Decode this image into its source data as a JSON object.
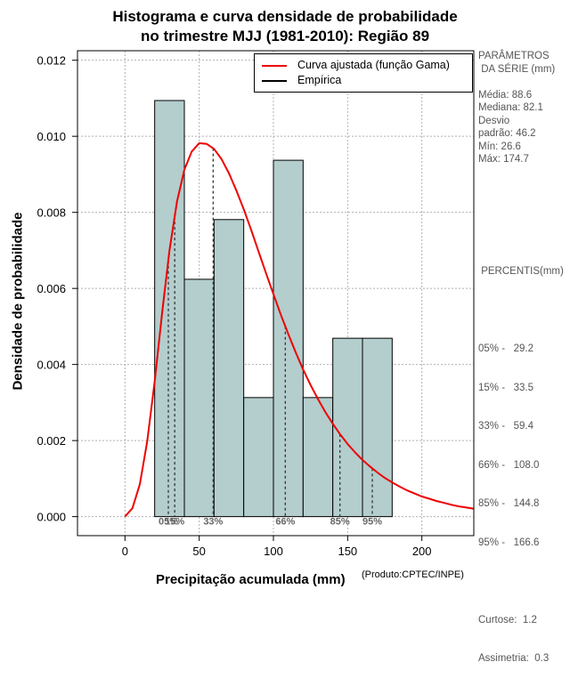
{
  "chart_data": {
    "type": "histogram",
    "title_line1": "Histograma e curva densidade de probabilidade",
    "title_line2": "no trimestre MJJ (1981-2010): Região 89",
    "xlabel": "Precipitação acumulada (mm)",
    "ylabel": "Densidade de probabilidade",
    "product_note": "(Produto:CPTEC/INPE)",
    "xlim": [
      -32,
      235
    ],
    "ylim": [
      -0.0005,
      0.01225
    ],
    "x_ticks": [
      0,
      50,
      100,
      150,
      200
    ],
    "x_tick_labels": [
      "0",
      "50",
      "100",
      "150",
      "200"
    ],
    "y_ticks": [
      0.0,
      0.002,
      0.004,
      0.006,
      0.008,
      0.01,
      0.012
    ],
    "y_tick_labels": [
      "0.000",
      "0.002",
      "0.004",
      "0.006",
      "0.008",
      "0.010",
      "0.012"
    ],
    "bins": [
      {
        "x0": 20,
        "x1": 40,
        "density": 0.01094
      },
      {
        "x0": 40,
        "x1": 60,
        "density": 0.00624
      },
      {
        "x0": 60,
        "x1": 80,
        "density": 0.00781
      },
      {
        "x0": 80,
        "x1": 100,
        "density": 0.00313
      },
      {
        "x0": 100,
        "x1": 120,
        "density": 0.00937
      },
      {
        "x0": 120,
        "x1": 140,
        "density": 0.00313
      },
      {
        "x0": 140,
        "x1": 160,
        "density": 0.00469
      },
      {
        "x0": 160,
        "x1": 180,
        "density": 0.00469
      }
    ],
    "fitted_curve": {
      "name": "Curva ajustada (função Gama)",
      "color": "#ee0000",
      "x": [
        0,
        5,
        10,
        15,
        20,
        25,
        30,
        35,
        40,
        45,
        50,
        55,
        60,
        65,
        70,
        75,
        80,
        85,
        90,
        95,
        100,
        105,
        110,
        115,
        120,
        125,
        130,
        135,
        140,
        145,
        150,
        155,
        160,
        165,
        170,
        175,
        180,
        185,
        190,
        195,
        200,
        205,
        210,
        215,
        220,
        225,
        230,
        235
      ],
      "y": [
        0.0,
        0.00022,
        0.00085,
        0.00198,
        0.00356,
        0.00535,
        0.007,
        0.00828,
        0.00912,
        0.0096,
        0.00982,
        0.0098,
        0.00967,
        0.0094,
        0.00903,
        0.00858,
        0.00808,
        0.00754,
        0.00697,
        0.0064,
        0.00585,
        0.00531,
        0.0048,
        0.00432,
        0.00387,
        0.00346,
        0.00309,
        0.00275,
        0.00244,
        0.00216,
        0.00191,
        0.00169,
        0.00149,
        0.00132,
        0.00116,
        0.00102,
        0.0009,
        0.00079,
        0.00069,
        0.00061,
        0.00053,
        0.00047,
        0.00041,
        0.00036,
        0.00031,
        0.00027,
        0.00024,
        0.00021
      ]
    },
    "empirical": {
      "name": "Empírica",
      "color": "#000000"
    },
    "percentile_markers": [
      {
        "label": "05%",
        "x": 29.2
      },
      {
        "label": "15%",
        "x": 33.5
      },
      {
        "label": "33%",
        "x": 59.4
      },
      {
        "label": "66%",
        "x": 108.0
      },
      {
        "label": "85%",
        "x": 144.8
      },
      {
        "label": "95%",
        "x": 166.6
      }
    ],
    "colors": {
      "bar_fill": "#b4cdcd",
      "bar_stroke": "#000000",
      "grid": "#b0b0b0",
      "marker_label": "#666666"
    }
  },
  "parametros": {
    "header_line1": "PARÂMETROS",
    "header_line2": " DA SÉRIE (mm)",
    "media": "Média:  88.6",
    "mediana": "Mediana:  82.1",
    "desvio_line1": "Desvio",
    "desvio_line2": "padrão:  46.2",
    "min": "Mín:  26.6",
    "max": "Máx:  174.7"
  },
  "percentis": {
    "header": " PERCENTIS(mm)",
    "p05": "05% -   29.2",
    "p15": "15% -   33.5",
    "p33": "33% -   59.4",
    "p66": "66% -   108.0",
    "p85": "85% -   144.8",
    "p95": "95% -   166.6",
    "curtose": "Curtose:  1.2",
    "assimetria": "Assimetria:  0.3"
  }
}
